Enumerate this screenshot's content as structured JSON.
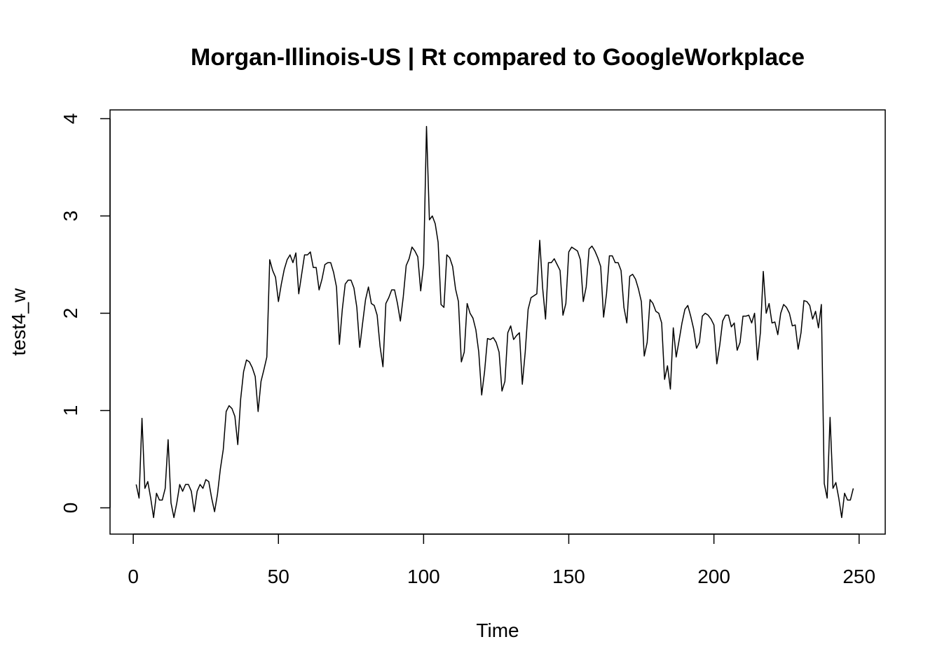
{
  "chart_data": {
    "type": "line",
    "title": "Morgan-Illinois-US | Rt compared to GoogleWorkplace",
    "xlabel": "Time",
    "ylabel": "test4_w",
    "xlim": [
      -8,
      259
    ],
    "ylim": [
      -0.27,
      4.09
    ],
    "x_ticks": [
      0,
      50,
      100,
      150,
      200,
      250
    ],
    "x_tick_labels": [
      "0",
      "50",
      "100",
      "150",
      "200",
      "250"
    ],
    "y_ticks": [
      0,
      1,
      2,
      3,
      4
    ],
    "y_tick_labels": [
      "0",
      "1",
      "2",
      "3",
      "4"
    ],
    "grid": false,
    "legend": "none",
    "line_color": "#000000",
    "series": [
      {
        "x_start": 1,
        "x_step": 1,
        "values": [
          0.24,
          0.1,
          0.92,
          0.2,
          0.27,
          0.1,
          -0.1,
          0.15,
          0.08,
          0.08,
          0.2,
          0.7,
          0.05,
          -0.1,
          0.05,
          0.24,
          0.17,
          0.24,
          0.24,
          0.17,
          -0.04,
          0.17,
          0.24,
          0.2,
          0.29,
          0.27,
          0.1,
          -0.04,
          0.14,
          0.4,
          0.6,
          0.99,
          1.05,
          1.02,
          0.94,
          0.65,
          1.12,
          1.4,
          1.52,
          1.5,
          1.44,
          1.35,
          0.99,
          1.3,
          1.42,
          1.55,
          2.55,
          2.44,
          2.37,
          2.12,
          2.3,
          2.45,
          2.55,
          2.6,
          2.52,
          2.62,
          2.2,
          2.4,
          2.6,
          2.6,
          2.63,
          2.47,
          2.47,
          2.24,
          2.35,
          2.5,
          2.52,
          2.52,
          2.42,
          2.27,
          1.68,
          2.04,
          2.3,
          2.34,
          2.34,
          2.26,
          2.06,
          1.65,
          1.9,
          2.14,
          2.27,
          2.1,
          2.08,
          1.98,
          1.66,
          1.45,
          2.1,
          2.16,
          2.24,
          2.24,
          2.1,
          1.92,
          2.17,
          2.49,
          2.56,
          2.68,
          2.64,
          2.58,
          2.23,
          2.5,
          3.92,
          2.96,
          3.0,
          2.92,
          2.73,
          2.09,
          2.06,
          2.6,
          2.57,
          2.48,
          2.25,
          2.12,
          1.5,
          1.6,
          2.1,
          2.0,
          1.95,
          1.83,
          1.6,
          1.16,
          1.4,
          1.74,
          1.73,
          1.75,
          1.7,
          1.6,
          1.2,
          1.3,
          1.8,
          1.87,
          1.73,
          1.77,
          1.8,
          1.27,
          1.6,
          2.04,
          2.16,
          2.18,
          2.2,
          2.75,
          2.26,
          1.94,
          2.52,
          2.52,
          2.56,
          2.5,
          2.44,
          1.98,
          2.1,
          2.63,
          2.68,
          2.66,
          2.64,
          2.55,
          2.12,
          2.27,
          2.66,
          2.69,
          2.64,
          2.57,
          2.48,
          1.96,
          2.2,
          2.59,
          2.59,
          2.52,
          2.52,
          2.44,
          2.06,
          1.9,
          2.38,
          2.4,
          2.35,
          2.25,
          2.12,
          1.56,
          1.7,
          2.14,
          2.1,
          2.02,
          2.0,
          1.9,
          1.32,
          1.46,
          1.22,
          1.85,
          1.55,
          1.72,
          1.9,
          2.04,
          2.08,
          1.97,
          1.84,
          1.64,
          1.7,
          1.97,
          2.0,
          1.98,
          1.94,
          1.88,
          1.48,
          1.67,
          1.92,
          1.98,
          1.98,
          1.86,
          1.9,
          1.62,
          1.7,
          1.97,
          1.97,
          1.98,
          1.9,
          2.0,
          1.52,
          1.8,
          2.43,
          2.0,
          2.1,
          1.9,
          1.91,
          1.78,
          2.0,
          2.09,
          2.06,
          2.0,
          1.87,
          1.88,
          1.63,
          1.8,
          2.13,
          2.12,
          2.08,
          1.94,
          2.02,
          1.85,
          2.09,
          0.25,
          0.1,
          0.93,
          0.2,
          0.26,
          0.1,
          -0.1,
          0.15,
          0.08,
          0.08,
          0.2
        ]
      }
    ]
  }
}
